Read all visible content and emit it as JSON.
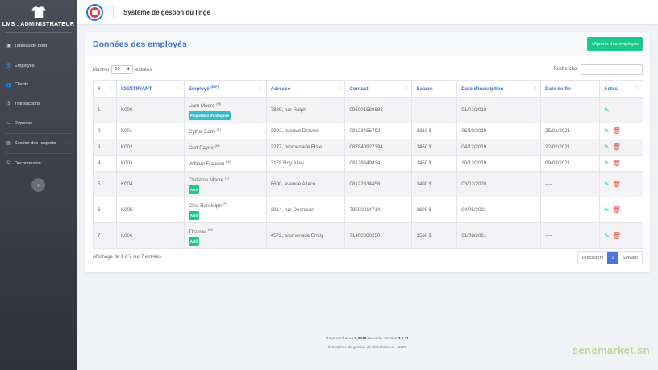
{
  "sidebar": {
    "brand": "LMS : ADMINISTRATEUR",
    "items": [
      {
        "label": "Tableau de bord",
        "icon": "dashboard-icon",
        "glyph": "▣"
      },
      {
        "label": "Employés",
        "icon": "user-icon",
        "glyph": "👤"
      },
      {
        "label": "Clients",
        "icon": "users-icon",
        "glyph": "👥"
      },
      {
        "label": "Transactions",
        "icon": "dollar-icon",
        "glyph": "$"
      },
      {
        "label": "Dépense",
        "icon": "share-icon",
        "glyph": "↪"
      },
      {
        "label": "Section des rapports",
        "icon": "report-icon",
        "glyph": "▤"
      },
      {
        "label": "Déconnexion",
        "icon": "power-icon",
        "glyph": "⏻"
      }
    ],
    "collapse": "‹"
  },
  "topbar": {
    "title": "Système de gestion du linge"
  },
  "card": {
    "title": "Données des employés",
    "add_button": "+Ajouter des employés",
    "show_prefix": "Montrer",
    "show_value": "10",
    "show_suffix": "entrées",
    "search_label": "Recherche:",
    "info": "Affichage de 1 à 7 sur 7 entrées",
    "prev": "Précédent",
    "page": "1",
    "next": "Suivant"
  },
  "table": {
    "headers": [
      "#",
      "IDENTIFIANT",
      "Employé (M/F)",
      "Adresse",
      "Contact",
      "Salaire",
      "Date d'inscription",
      "Date de fin",
      "Actes"
    ],
    "rows": [
      {
        "n": "1",
        "id": "K000",
        "name": "Liam Moore",
        "sex": "(M)",
        "badge": "Propriétaire d'entreprise",
        "badge_type": "owner",
        "addr": "7869, rue Ralph",
        "contact": "096001588686",
        "salary": "----",
        "start": "01/01/2018",
        "end": "----",
        "delete": false
      },
      {
        "n": "2",
        "id": "K001",
        "name": "Cythia Eddy",
        "sex": "(F)",
        "badge": "",
        "badge_type": "",
        "addr": "2902, avenue Drainer",
        "contact": "08123456792",
        "salary": "1360 $",
        "start": "06/10/2019",
        "end": "25/01/2021",
        "delete": true
      },
      {
        "n": "3",
        "id": "K002",
        "name": "Curt Payne",
        "sex": "(M)",
        "badge": "",
        "badge_type": "",
        "addr": "2277, promenade Elsie",
        "contact": "087840927394",
        "salary": "1450 $",
        "start": "04/12/2019",
        "end": "22/02/2021",
        "delete": true
      },
      {
        "n": "4",
        "id": "K003",
        "name": "William Franson",
        "sex": "(M)",
        "badge": "",
        "badge_type": "",
        "addr": "3178 Roy Alley",
        "contact": "08128349834",
        "salary": "1450 $",
        "start": "10/12/2019",
        "end": "09/03/2021",
        "delete": true
      },
      {
        "n": "5",
        "id": "K004",
        "name": "Christine Moore",
        "sex": "(F)",
        "badge": "Actif",
        "badge_type": "active",
        "addr": "8600, avenue Allace",
        "contact": "08122334458",
        "salary": "1400 $",
        "start": "03/02/2020",
        "end": "----",
        "delete": true
      },
      {
        "n": "6",
        "id": "K005",
        "name": "Cléa Randolph",
        "sex": "(F)",
        "badge": "Actif",
        "badge_type": "active",
        "addr": "3914, rue Dennison",
        "contact": "78500014714",
        "salary": "1600 $",
        "start": "04/05/2021",
        "end": "----",
        "delete": true
      },
      {
        "n": "7",
        "id": "K006",
        "name": "Thomas",
        "sex": "(M)",
        "badge": "Actif",
        "badge_type": "active",
        "addr": "4572, promenade Emily",
        "contact": "71400000250",
        "salary": "1560 $",
        "start": "01/08/2021",
        "end": "----",
        "delete": true
      }
    ]
  },
  "footer": {
    "line1_prefix": "Page rendue en",
    "time": "0,0349",
    "line1_mid": "seconde. Version",
    "version": "3.1.11",
    "line2": "© Système de gestion de blanchisserie - 2025"
  },
  "watermark": "senemarket.sn",
  "colors": {
    "primary": "#3a6fd8",
    "success": "#1cc88a",
    "danger": "#e74a3b",
    "info": "#36b9cc"
  }
}
